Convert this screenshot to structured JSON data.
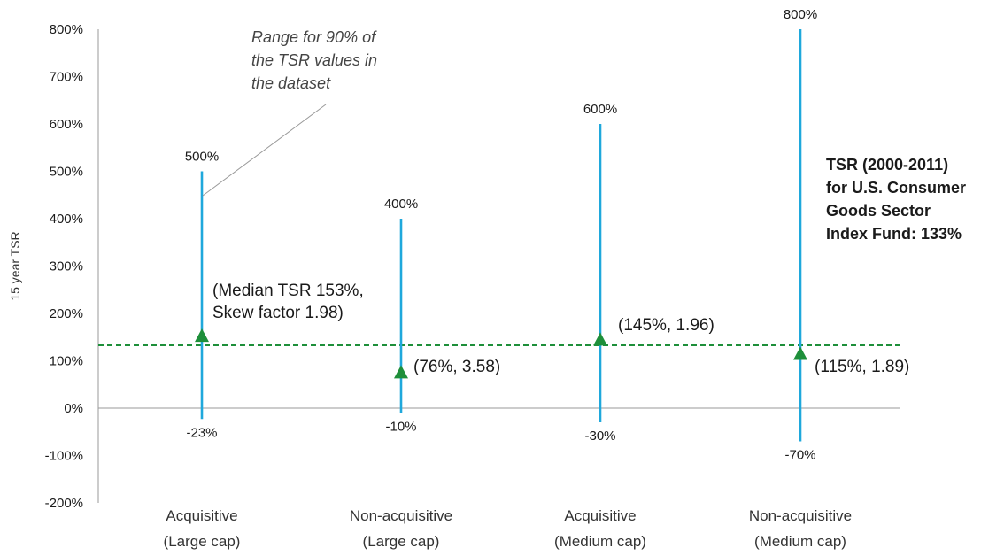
{
  "chart_data": {
    "type": "range",
    "ylabel": "15 year TSR",
    "ylim": [
      -200,
      800
    ],
    "y_ticks": [
      "800%",
      "700%",
      "600%",
      "500%",
      "400%",
      "300%",
      "200%",
      "100%",
      "0%",
      "-100%",
      "-200%"
    ],
    "categories": [
      {
        "line1": "Acquisitive",
        "line2": "(Large cap)"
      },
      {
        "line1": "Non-acquisitive",
        "line2": "(Large cap)"
      },
      {
        "line1": "Acquisitive",
        "line2": "(Medium cap)"
      },
      {
        "line1": "Non-acquisitive",
        "line2": "(Medium cap)"
      }
    ],
    "series": [
      {
        "high": 500,
        "low": -23,
        "median": 153,
        "skew": 1.98,
        "high_label": "500%",
        "low_label": "-23%",
        "median_label_lines": [
          "(Median TSR 153%,",
          "Skew factor 1.98)"
        ]
      },
      {
        "high": 400,
        "low": -10,
        "median": 76,
        "skew": 3.58,
        "high_label": "400%",
        "low_label": "-10%",
        "median_label_lines": [
          "(76%, 3.58)"
        ]
      },
      {
        "high": 600,
        "low": -30,
        "median": 145,
        "skew": 1.96,
        "high_label": "600%",
        "low_label": "-30%",
        "median_label_lines": [
          "(145%, 1.96)"
        ]
      },
      {
        "high": 800,
        "low": -70,
        "median": 115,
        "skew": 1.89,
        "high_label": "800%",
        "low_label": "-70%",
        "median_label_lines": [
          "(115%, 1.89)"
        ]
      }
    ],
    "benchmark": {
      "value": 133,
      "label_lines": [
        "TSR (2000-2011)",
        "for U.S. Consumer",
        "Goods Sector",
        "Index Fund: 133%"
      ]
    },
    "annotation_lines": [
      "Range for 90% of",
      "the TSR values in",
      "the dataset"
    ],
    "colors": {
      "range_line": "#1fa8dc",
      "median_marker": "#1e8f3a",
      "benchmark_line": "#1e8f3a",
      "axis": "#9a9a9a"
    }
  }
}
